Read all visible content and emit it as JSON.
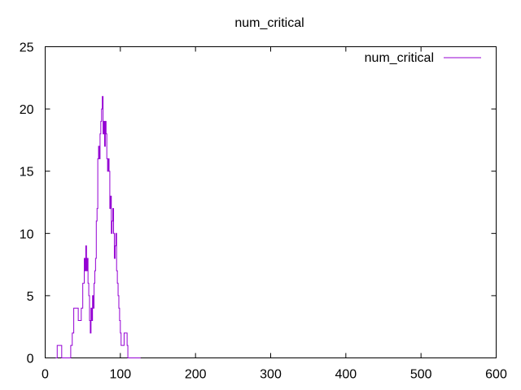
{
  "chart_data": {
    "type": "line",
    "title": "num_critical",
    "xlabel": "",
    "ylabel": "",
    "xlim": [
      0,
      600
    ],
    "ylim": [
      0,
      25
    ],
    "x_ticks": [
      0,
      100,
      200,
      300,
      400,
      500,
      600
    ],
    "y_ticks": [
      0,
      5,
      10,
      15,
      20,
      25
    ],
    "grid": false,
    "legend_position": "top-right",
    "series": [
      {
        "name": "num_critical",
        "color": "#9400d3",
        "step": true,
        "x": [
          14,
          16,
          18,
          20,
          22,
          24,
          34,
          36,
          38,
          40,
          42,
          44,
          46,
          48,
          50,
          52,
          53,
          54,
          55,
          56,
          57,
          58,
          59,
          60,
          61,
          62,
          63,
          64,
          65,
          66,
          67,
          68,
          69,
          70,
          71,
          72,
          73,
          74,
          75,
          76,
          77,
          78,
          79,
          80,
          81,
          82,
          83,
          84,
          85,
          86,
          87,
          88,
          89,
          90,
          91,
          92,
          93,
          94,
          95,
          96,
          97,
          98,
          99,
          100,
          101,
          102,
          103,
          104,
          105,
          106,
          107,
          108,
          109,
          110,
          111,
          112,
          113,
          114,
          115,
          116,
          117,
          118,
          119,
          120,
          121,
          122,
          123,
          124,
          125,
          126,
          127
        ],
        "values": [
          0,
          1,
          1,
          1,
          0,
          0,
          1,
          2,
          4,
          4,
          4,
          3,
          3,
          4,
          6,
          8,
          7,
          9,
          7,
          8,
          6,
          5,
          3,
          2,
          4,
          3,
          5,
          4,
          6,
          7,
          8,
          11,
          12,
          16,
          17,
          16,
          18,
          19,
          20,
          21,
          18,
          19,
          17,
          19,
          18,
          16,
          15,
          16,
          15,
          12,
          13,
          10,
          11,
          12,
          10,
          8,
          9,
          10,
          7,
          6,
          5,
          4,
          3,
          2,
          1,
          1,
          1,
          1,
          2,
          2,
          2,
          2,
          1,
          0,
          0,
          0,
          0,
          0,
          0,
          0,
          0,
          0,
          0,
          0,
          0,
          0,
          0,
          0,
          0,
          0,
          0
        ]
      }
    ]
  }
}
